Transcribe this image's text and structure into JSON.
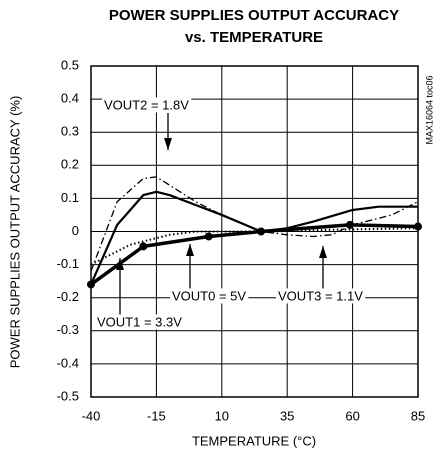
{
  "chart_data": {
    "type": "line",
    "title": "POWER SUPPLIES OUTPUT ACCURACY",
    "subtitle": "vs. TEMPERATURE",
    "x_label": "TEMPERATURE (°C)",
    "y_label": "POWER SUPPLIES OUTPUT ACCURACY (%)",
    "side_note": "MAX16064 toc06",
    "xlim": [
      -40,
      85
    ],
    "xticks": [
      -40,
      -15,
      10,
      35,
      60,
      85
    ],
    "ylim": [
      -0.5,
      0.5
    ],
    "yticks": [
      0.5,
      0.4,
      0.3,
      0.2,
      0.1,
      0,
      -0.1,
      -0.2,
      -0.3,
      -0.4,
      -0.5
    ],
    "grid": true,
    "series": [
      {
        "name": "VOUT1 = 3.3V",
        "color": "#000000",
        "style": "solid",
        "width": 3.5,
        "markers": true,
        "x": [
          -40,
          -20,
          5,
          25,
          59,
          85
        ],
        "values": [
          -0.16,
          -0.045,
          -0.015,
          0,
          0.02,
          0.015
        ]
      },
      {
        "name": "VOUT2 = 1.8V",
        "color": "#000000",
        "style": "solid",
        "width": 2.2,
        "markers": false,
        "x": [
          -40,
          -30,
          -20,
          -15,
          -10,
          0,
          10,
          25,
          35,
          45,
          60,
          70,
          85
        ],
        "values": [
          -0.16,
          0.02,
          0.11,
          0.12,
          0.11,
          0.08,
          0.05,
          0,
          0.01,
          0.03,
          0.065,
          0.075,
          0.075
        ]
      },
      {
        "name": "VOUT3 = 1.1V",
        "color": "#000000",
        "style": "dashdot",
        "width": 1.3,
        "markers": false,
        "x": [
          -40,
          -30,
          -20,
          -15,
          -10,
          0,
          10,
          25,
          35,
          45,
          52,
          60,
          75,
          85
        ],
        "values": [
          -0.12,
          0.09,
          0.16,
          0.165,
          0.14,
          0.09,
          0.05,
          0,
          -0.01,
          -0.015,
          -0.01,
          0.02,
          0.05,
          0.09
        ]
      },
      {
        "name": "VOUT0 = 5V",
        "color": "#000000",
        "style": "dotted",
        "width": 2,
        "markers": false,
        "x": [
          -40,
          -25,
          -10,
          0,
          30,
          50,
          85
        ],
        "values": [
          -0.1,
          -0.04,
          -0.01,
          0,
          0,
          0.005,
          0.01
        ]
      }
    ]
  }
}
